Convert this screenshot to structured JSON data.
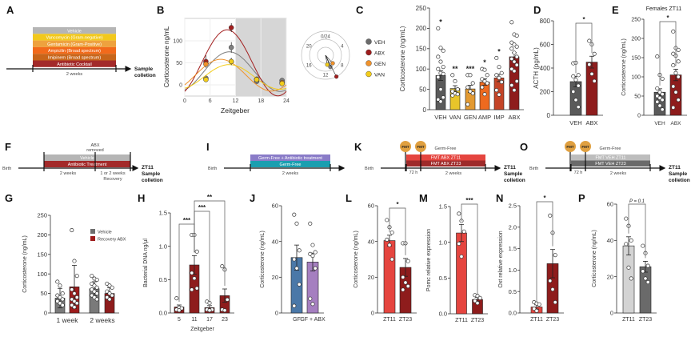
{
  "panel_labels": [
    "A",
    "B",
    "C",
    "D",
    "E",
    "F",
    "G",
    "H",
    "I",
    "J",
    "K",
    "L",
    "M",
    "N",
    "O",
    "P"
  ],
  "timelines": {
    "A": {
      "groups": [
        {
          "label": "Vehicle",
          "color": "#b5b5b5"
        },
        {
          "label": "Vancomycin (Gram-negative)",
          "color": "#f2c81c"
        },
        {
          "label": "Gentamicin (Gram-Positive)",
          "color": "#eea23e"
        },
        {
          "label": "Ampicilin (Broad spectrum)",
          "color": "#f26a1b"
        },
        {
          "label": "Imipinem (Broad spectrum)",
          "color": "#c8651a"
        },
        {
          "label": "Antibiotic Cocktail",
          "color": "#a32a2a"
        }
      ],
      "birth": "Birth",
      "duration": "2 weeks",
      "end_1": "Sample",
      "end_2": "colletion"
    },
    "F": {
      "groups": [
        {
          "label": "Vehicle",
          "color": "#b5b5b5"
        },
        {
          "label": "Antibiotic Treatment",
          "color": "#a32a2a"
        }
      ],
      "event_1": "ABX",
      "event_2": "removed",
      "birth": "Birth",
      "duration": "2 weeks",
      "recovery_1": "1 or 2 weeks",
      "recovery_2": "Recovery",
      "end_0": "ZT11",
      "end_1": "Sample",
      "end_2": "colletion"
    },
    "I": {
      "groups": [
        {
          "label": "Germ-Free + Antibiotic treatment",
          "color": "#8a7cc8"
        },
        {
          "label": "Germ-Free",
          "color": "#1a9fb0"
        }
      ],
      "birth": "Birth",
      "duration": "2 weeks"
    },
    "K": {
      "fmt": "FMT",
      "header": "Germ-Free",
      "groups": [
        {
          "label": "FMT ABX ZT11",
          "color": "#e5453f"
        },
        {
          "label": "FMT ABX ZT23",
          "color": "#9e2a2a"
        }
      ],
      "birth": "Birth",
      "gap": "72 h",
      "duration": "2 weeks",
      "end_0": "ZT11",
      "end_1": "Sample",
      "end_2": "colletion"
    },
    "O": {
      "fmt": "FMT",
      "header": "Germ-Free",
      "groups": [
        {
          "label": "FMT VEH ZT11",
          "color": "#bdbdbd"
        },
        {
          "label": "FMT VEH ZT23",
          "color": "#6a6a6a"
        }
      ],
      "birth": "Birth",
      "gap": "72 h",
      "duration": "2 weeks",
      "end_0": "ZT11",
      "end_1": "Sample",
      "end_2": "colletion"
    }
  },
  "legend_B": [
    {
      "label": "VEH",
      "color": "#6b6b6b"
    },
    {
      "label": "ABX",
      "color": "#9e1c1c"
    },
    {
      "label": "GEN",
      "color": "#f0922b"
    },
    {
      "label": "VAN",
      "color": "#f2cc1a"
    }
  ],
  "chart_data": [
    {
      "panel": "B",
      "type": "line",
      "xlabel": "Zeitgeber",
      "ylabel": "Corticosterone ng/mL",
      "xlim": [
        0,
        24
      ],
      "ylim": [
        -25,
        150
      ],
      "xticks": [
        "0",
        "6",
        "12",
        "18",
        "24"
      ],
      "yticks": [
        "0",
        "50",
        "100"
      ],
      "dark_phase": [
        12,
        24
      ],
      "grid": true,
      "x": [
        5,
        11,
        17,
        23
      ],
      "series": [
        {
          "name": "VEH",
          "color": "#7f7f7f",
          "values": [
            15,
            85,
            8,
            10
          ],
          "sem": [
            4,
            12,
            4,
            4
          ],
          "fit": {
            "mesor": 30,
            "amplitude": 45,
            "acrophase": 10.5
          }
        },
        {
          "name": "ABX",
          "color": "#a31f1f",
          "values": [
            53,
            130,
            13,
            5
          ],
          "sem": [
            14,
            10,
            4,
            4
          ],
          "fit": {
            "mesor": 50,
            "amplitude": 75,
            "acrophase": 10
          }
        },
        {
          "name": "GEN",
          "color": "#f0922b",
          "values": [
            47,
            53,
            12,
            5
          ],
          "sem": [
            8,
            8,
            4,
            4
          ],
          "fit": {
            "mesor": 22,
            "amplitude": 36,
            "acrophase": 8.5
          }
        },
        {
          "name": "VAN",
          "color": "#f2cc1a",
          "values": [
            12,
            53,
            12,
            3
          ],
          "sem": [
            4,
            8,
            4,
            4
          ],
          "fit": {
            "mesor": 18,
            "amplitude": 28,
            "acrophase": 10.5
          }
        }
      ]
    },
    {
      "panel": "B",
      "type": "polar",
      "ticks": [
        "0/24",
        "4",
        "8",
        "12",
        "16",
        "20"
      ],
      "series": [
        {
          "name": "VEH",
          "color": "#7f7f7f",
          "acrophase_h": 10.5,
          "magnitude": 0.53
        },
        {
          "name": "ABX",
          "color": "#a31f1f",
          "acrophase_h": 10.2,
          "magnitude": 1.0
        },
        {
          "name": "GEN",
          "color": "#f0922b",
          "acrophase_h": 9.2,
          "magnitude": 0.45
        },
        {
          "name": "VAN",
          "color": "#f2cc1a",
          "acrophase_h": 11.3,
          "magnitude": 0.4
        }
      ]
    },
    {
      "panel": "C",
      "type": "bar",
      "ylabel": "Corticosterone (ng/mL)",
      "ylim": [
        0,
        250
      ],
      "yticks": [
        "0",
        "50",
        "100",
        "150",
        "200",
        "250"
      ],
      "categories": [
        "VEH",
        "VAN",
        "GEN",
        "AMP",
        "IMP",
        "ABX"
      ],
      "stars": [
        "*",
        "**",
        "***",
        "*",
        "*",
        ""
      ],
      "bars": [
        {
          "value": 84,
          "err": 12,
          "color": "#5a5a5a",
          "points": [
            200,
            152,
            145,
            130,
            118,
            105,
            100,
            90,
            88,
            80,
            50,
            30,
            25,
            20
          ]
        },
        {
          "value": 52,
          "err": 7,
          "color": "#e8c52a",
          "points": [
            85,
            70,
            50,
            45,
            40,
            38,
            35
          ]
        },
        {
          "value": 51,
          "err": 9,
          "color": "#e39a32",
          "points": [
            85,
            85,
            65,
            55,
            45,
            40,
            13
          ]
        },
        {
          "value": 68,
          "err": 8,
          "color": "#ee6a1f",
          "points": [
            100,
            98,
            85,
            75,
            70,
            65,
            55,
            38
          ]
        },
        {
          "value": 78,
          "err": 9,
          "color": "#c44427",
          "points": [
            127,
            105,
            90,
            85,
            78,
            68,
            48,
            37
          ]
        },
        {
          "value": 130,
          "err": 10,
          "color": "#8e1c1c",
          "points": [
            215,
            185,
            182,
            165,
            160,
            155,
            150,
            140,
            130,
            125,
            118,
            110,
            100,
            95,
            70,
            60,
            48
          ]
        }
      ]
    },
    {
      "panel": "D",
      "type": "bar",
      "ylabel": "ACTH (pg/mL)",
      "ylim": [
        0,
        800
      ],
      "yticks": [
        "0",
        "200",
        "400",
        "600",
        "800"
      ],
      "categories": [
        "VEH",
        "ABX"
      ],
      "brackets": [
        {
          "from": 0,
          "to": 1,
          "label": "*"
        }
      ],
      "bars": [
        {
          "value": 285,
          "err": 45,
          "color": "#5a5a5a",
          "points": [
            440,
            445,
            340,
            330,
            300,
            250,
            200,
            130,
            70
          ]
        },
        {
          "value": 450,
          "err": 50,
          "color": "#8e1c1c",
          "points": [
            630,
            600,
            520,
            430,
            350,
            290
          ]
        }
      ]
    },
    {
      "panel": "E",
      "type": "bar",
      "title": "Females ZT11",
      "ylabel": "Corticosterone (ng/mL)",
      "ylim": [
        0,
        250
      ],
      "yticks": [
        "0",
        "50",
        "100",
        "150",
        "200",
        "250"
      ],
      "categories": [
        "VEH",
        "ABX"
      ],
      "brackets": [
        {
          "from": 0,
          "to": 1,
          "label": "*"
        }
      ],
      "bars": [
        {
          "value": 60,
          "err": 9,
          "color": "#5a5a5a",
          "points": [
            153,
            105,
            95,
            70,
            60,
            55,
            50,
            45,
            40,
            35,
            25,
            15
          ]
        },
        {
          "value": 105,
          "err": 15,
          "color": "#8e1c1c",
          "points": [
            218,
            175,
            170,
            160,
            155,
            140,
            130,
            110,
            100,
            75,
            60,
            40,
            20
          ]
        }
      ]
    },
    {
      "panel": "G",
      "type": "bar",
      "ylabel": "Corticosterone (ng/mL)",
      "ylim": [
        0,
        250
      ],
      "yticks": [
        "0",
        "50",
        "100",
        "150",
        "200",
        "250"
      ],
      "categories": [
        "1 week",
        "2 weeks"
      ],
      "legend": [
        {
          "name": "Vehicle",
          "color": "#6e6e6e"
        },
        {
          "name": "Recovery ABX",
          "color": "#9e1c1c"
        }
      ],
      "bars": [
        {
          "category": "1 week",
          "series": "Vehicle",
          "value": 38,
          "err": 25,
          "color": "#7a7a7a",
          "points": [
            80,
            70,
            50,
            45,
            40,
            35,
            30,
            25,
            20
          ]
        },
        {
          "category": "1 week",
          "series": "Recovery ABX",
          "value": 67,
          "err": 55,
          "color": "#9e1c1c",
          "points": [
            212,
            133,
            95,
            60,
            50,
            40,
            35,
            30,
            25,
            20,
            15
          ]
        },
        {
          "category": "2 weeks",
          "series": "Vehicle",
          "value": 62,
          "err": 18,
          "color": "#7a7a7a",
          "points": [
            95,
            88,
            85,
            75,
            70,
            65,
            60,
            55,
            50,
            45,
            40,
            35
          ]
        },
        {
          "category": "2 weeks",
          "series": "Recovery ABX",
          "value": 50,
          "err": 15,
          "color": "#8e1c1c",
          "points": [
            75,
            70,
            65,
            55,
            50,
            45,
            40,
            35
          ]
        }
      ]
    },
    {
      "panel": "H",
      "type": "bar",
      "xlabel": "Zeitgeber",
      "ylabel": "Bacterial DNA ng/µl",
      "ylim": [
        0,
        1.5
      ],
      "yticks": [
        "0.0",
        "0.5",
        "1.0",
        "1.5"
      ],
      "categories": [
        "5",
        "11",
        "17",
        "23"
      ],
      "brackets": [
        {
          "from": 0,
          "to": 1,
          "label": "***"
        },
        {
          "from": 1,
          "to": 2,
          "label": "***"
        },
        {
          "from": 1,
          "to": 3,
          "label": "**"
        }
      ],
      "bars": [
        {
          "value": 0.09,
          "err": 0.03,
          "color": "#8e1c1c",
          "points": [
            0.22,
            0.08,
            0.07,
            0.05,
            0.04
          ]
        },
        {
          "value": 0.72,
          "err": 0.14,
          "color": "#8e1c1c",
          "points": [
            1.17,
            1.17,
            0.92,
            0.6,
            0.52,
            0.37,
            0.35
          ]
        },
        {
          "value": 0.08,
          "err": 0.03,
          "color": "#8e1c1c",
          "points": [
            0.17,
            0.15,
            0.05,
            0.05,
            0.04
          ]
        },
        {
          "value": 0.26,
          "err": 0.1,
          "color": "#8e1c1c",
          "points": [
            0.7,
            0.65,
            0.2,
            0.05,
            0.04
          ]
        }
      ]
    },
    {
      "panel": "J",
      "type": "bar",
      "ylabel": "Corticosterone (ng/mL)",
      "ylim": [
        0,
        60
      ],
      "yticks": [
        "0",
        "20",
        "40",
        "60"
      ],
      "categories": [
        "GF",
        "GF + ABX"
      ],
      "bars": [
        {
          "value": 31,
          "err": 7,
          "color": "#4a78a8",
          "points": [
            55,
            50,
            35,
            30,
            25,
            16,
            4
          ]
        },
        {
          "value": 28.5,
          "err": 5,
          "color": "#a57fc0",
          "points": [
            50,
            38,
            34,
            33,
            32,
            25,
            8,
            5
          ]
        }
      ]
    },
    {
      "panel": "L",
      "type": "bar",
      "ylabel": "Corticosterone (ng/mL)",
      "ylim": [
        0,
        60
      ],
      "yticks": [
        "0",
        "20",
        "40",
        "60"
      ],
      "categories": [
        "ZT11",
        "ZT23"
      ],
      "brackets": [
        {
          "from": 0,
          "to": 1,
          "label": "*"
        }
      ],
      "bars": [
        {
          "value": 40.5,
          "err": 3,
          "color": "#e5453f",
          "points": [
            52,
            48,
            45,
            41,
            38,
            30
          ]
        },
        {
          "value": 25.5,
          "err": 5,
          "color": "#8e1c1c",
          "points": [
            39,
            39,
            29,
            20,
            17,
            15,
            13
          ]
        }
      ]
    },
    {
      "panel": "M",
      "type": "bar",
      "ylabel": "Pomc relative expression",
      "ylim": [
        0,
        1.5
      ],
      "yticks": [
        "0.0",
        "0.5",
        "1.0",
        "1.5"
      ],
      "categories": [
        "ZT11",
        "ZT23"
      ],
      "brackets": [
        {
          "from": 0,
          "to": 1,
          "label": "***"
        }
      ],
      "bars": [
        {
          "value": 1.13,
          "err": 0.12,
          "color": "#e5453f",
          "points": [
            1.4,
            1.3,
            1.15,
            0.98,
            0.8
          ]
        },
        {
          "value": 0.2,
          "err": 0.03,
          "color": "#8e1c1c",
          "points": [
            0.26,
            0.25,
            0.22,
            0.18,
            0.15
          ]
        }
      ]
    },
    {
      "panel": "N",
      "type": "bar",
      "ylabel": "Oxt relative expression",
      "ylim": [
        0,
        2.5
      ],
      "yticks": [
        "0.0",
        "0.5",
        "1.0",
        "1.5",
        "2.0",
        "2.5"
      ],
      "categories": [
        "ZT11",
        "ZT23"
      ],
      "brackets": [
        {
          "from": 0,
          "to": 1,
          "label": "*"
        }
      ],
      "bars": [
        {
          "value": 0.14,
          "err": 0.05,
          "color": "#e5453f",
          "points": [
            0.25,
            0.22,
            0.2,
            0.1,
            0.05
          ]
        },
        {
          "value": 1.15,
          "err": 0.33,
          "color": "#8e1c1c",
          "points": [
            2.27,
            1.87,
            1.35,
            0.75,
            0.55,
            0.25
          ]
        }
      ]
    },
    {
      "panel": "P",
      "type": "bar",
      "ylabel": "Corticosterone (ng/mL)",
      "ylim": [
        0,
        60
      ],
      "yticks": [
        "0",
        "20",
        "40",
        "60"
      ],
      "categories": [
        "ZT11",
        "ZT23"
      ],
      "brackets": [
        {
          "from": 0,
          "to": 1,
          "label": "P = 0.1"
        }
      ],
      "bars": [
        {
          "value": 37,
          "err": 5,
          "color": "#d3d3d3",
          "points": [
            52,
            48,
            40,
            38,
            25,
            19
          ]
        },
        {
          "value": 25.5,
          "err": 3,
          "color": "#6a6a6a",
          "points": [
            37,
            33,
            26,
            23,
            19,
            17
          ]
        }
      ]
    }
  ]
}
